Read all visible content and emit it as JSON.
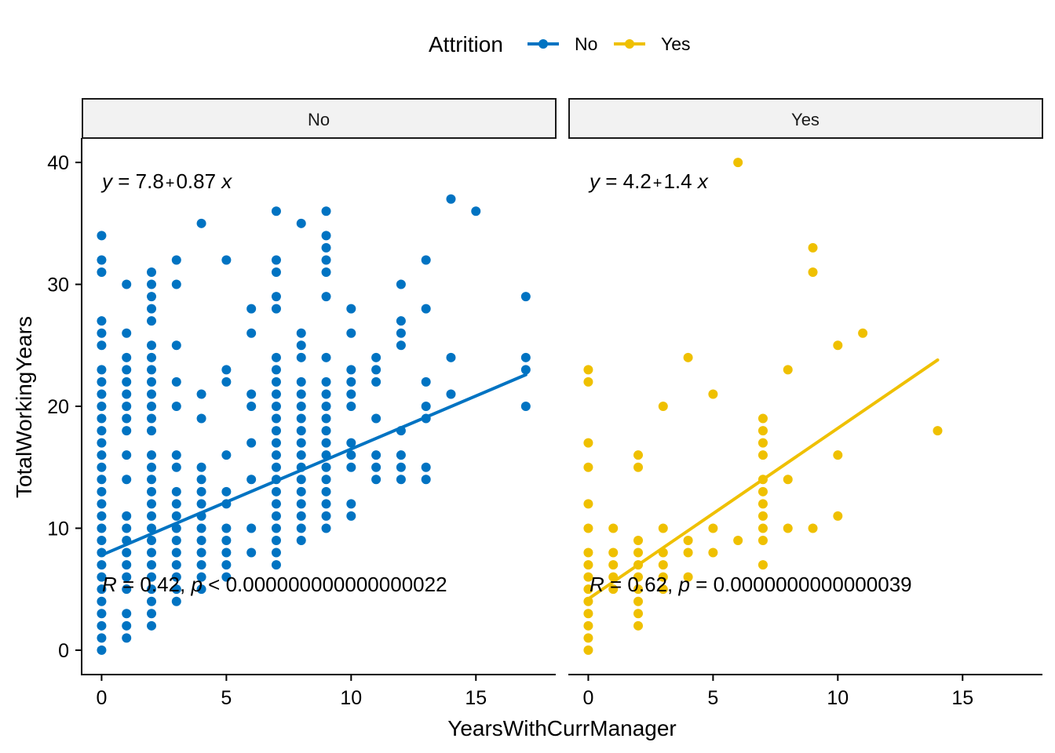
{
  "chart_data": {
    "type": "scatter",
    "xlabel": "YearsWithCurrManager",
    "ylabel": "TotalWorkingYears",
    "xlim": [
      -0.8,
      18.2
    ],
    "ylim": [
      -2,
      42
    ],
    "xticks": [
      0,
      5,
      10,
      15
    ],
    "yticks": [
      0,
      10,
      20,
      30,
      40
    ],
    "legend": {
      "title": "Attrition",
      "position": "top",
      "items": [
        {
          "label": "No",
          "color": "#0073C2"
        },
        {
          "label": "Yes",
          "color": "#EFC000"
        }
      ]
    },
    "panels": [
      {
        "strip": "No",
        "color": "#0073C2",
        "regression": {
          "intercept": 7.8,
          "slope": 0.87,
          "x_range": [
            0,
            17
          ],
          "equation": {
            "y": "y",
            "eq": " = 7.8",
            "plus": "+",
            "rest": "0.87 ",
            "x": "x"
          },
          "stats": {
            "R": "R",
            "rtext": " = 0.42, ",
            "p": "p",
            "ptext": " < 0.000000000000000022"
          }
        },
        "points": [
          [
            0,
            0
          ],
          [
            0,
            1
          ],
          [
            0,
            2
          ],
          [
            0,
            3
          ],
          [
            0,
            4
          ],
          [
            0,
            5
          ],
          [
            0,
            6
          ],
          [
            0,
            7
          ],
          [
            0,
            8
          ],
          [
            0,
            9
          ],
          [
            0,
            10
          ],
          [
            0,
            11
          ],
          [
            0,
            12
          ],
          [
            0,
            13
          ],
          [
            0,
            14
          ],
          [
            0,
            15
          ],
          [
            0,
            16
          ],
          [
            0,
            17
          ],
          [
            0,
            18
          ],
          [
            0,
            19
          ],
          [
            0,
            20
          ],
          [
            0,
            21
          ],
          [
            0,
            22
          ],
          [
            0,
            23
          ],
          [
            0,
            25
          ],
          [
            0,
            26
          ],
          [
            0,
            27
          ],
          [
            0,
            31
          ],
          [
            0,
            32
          ],
          [
            0,
            34
          ],
          [
            1,
            1
          ],
          [
            1,
            2
          ],
          [
            1,
            3
          ],
          [
            1,
            5
          ],
          [
            1,
            6
          ],
          [
            1,
            7
          ],
          [
            1,
            8
          ],
          [
            1,
            9
          ],
          [
            1,
            10
          ],
          [
            1,
            11
          ],
          [
            1,
            14
          ],
          [
            1,
            16
          ],
          [
            1,
            18
          ],
          [
            1,
            19
          ],
          [
            1,
            20
          ],
          [
            1,
            21
          ],
          [
            1,
            22
          ],
          [
            1,
            23
          ],
          [
            1,
            24
          ],
          [
            1,
            26
          ],
          [
            1,
            30
          ],
          [
            2,
            2
          ],
          [
            2,
            3
          ],
          [
            2,
            4
          ],
          [
            2,
            5
          ],
          [
            2,
            6
          ],
          [
            2,
            7
          ],
          [
            2,
            8
          ],
          [
            2,
            9
          ],
          [
            2,
            10
          ],
          [
            2,
            11
          ],
          [
            2,
            12
          ],
          [
            2,
            13
          ],
          [
            2,
            14
          ],
          [
            2,
            15
          ],
          [
            2,
            16
          ],
          [
            2,
            18
          ],
          [
            2,
            19
          ],
          [
            2,
            20
          ],
          [
            2,
            21
          ],
          [
            2,
            22
          ],
          [
            2,
            23
          ],
          [
            2,
            24
          ],
          [
            2,
            25
          ],
          [
            2,
            27
          ],
          [
            2,
            28
          ],
          [
            2,
            29
          ],
          [
            2,
            30
          ],
          [
            2,
            31
          ],
          [
            3,
            4
          ],
          [
            3,
            5
          ],
          [
            3,
            6
          ],
          [
            3,
            7
          ],
          [
            3,
            8
          ],
          [
            3,
            9
          ],
          [
            3,
            10
          ],
          [
            3,
            11
          ],
          [
            3,
            12
          ],
          [
            3,
            13
          ],
          [
            3,
            15
          ],
          [
            3,
            16
          ],
          [
            3,
            20
          ],
          [
            3,
            22
          ],
          [
            3,
            25
          ],
          [
            3,
            30
          ],
          [
            3,
            32
          ],
          [
            4,
            5
          ],
          [
            4,
            6
          ],
          [
            4,
            7
          ],
          [
            4,
            8
          ],
          [
            4,
            9
          ],
          [
            4,
            10
          ],
          [
            4,
            11
          ],
          [
            4,
            12
          ],
          [
            4,
            13
          ],
          [
            4,
            14
          ],
          [
            4,
            15
          ],
          [
            4,
            19
          ],
          [
            4,
            21
          ],
          [
            4,
            35
          ],
          [
            5,
            6
          ],
          [
            5,
            7
          ],
          [
            5,
            8
          ],
          [
            5,
            9
          ],
          [
            5,
            10
          ],
          [
            5,
            12
          ],
          [
            5,
            13
          ],
          [
            5,
            16
          ],
          [
            5,
            22
          ],
          [
            5,
            23
          ],
          [
            5,
            32
          ],
          [
            6,
            8
          ],
          [
            6,
            10
          ],
          [
            6,
            14
          ],
          [
            6,
            17
          ],
          [
            6,
            20
          ],
          [
            6,
            21
          ],
          [
            6,
            26
          ],
          [
            6,
            28
          ],
          [
            7,
            7
          ],
          [
            7,
            8
          ],
          [
            7,
            9
          ],
          [
            7,
            10
          ],
          [
            7,
            11
          ],
          [
            7,
            12
          ],
          [
            7,
            13
          ],
          [
            7,
            14
          ],
          [
            7,
            15
          ],
          [
            7,
            16
          ],
          [
            7,
            17
          ],
          [
            7,
            18
          ],
          [
            7,
            19
          ],
          [
            7,
            20
          ],
          [
            7,
            21
          ],
          [
            7,
            22
          ],
          [
            7,
            23
          ],
          [
            7,
            24
          ],
          [
            7,
            28
          ],
          [
            7,
            29
          ],
          [
            7,
            31
          ],
          [
            7,
            32
          ],
          [
            7,
            36
          ],
          [
            8,
            9
          ],
          [
            8,
            10
          ],
          [
            8,
            11
          ],
          [
            8,
            12
          ],
          [
            8,
            13
          ],
          [
            8,
            14
          ],
          [
            8,
            15
          ],
          [
            8,
            16
          ],
          [
            8,
            17
          ],
          [
            8,
            18
          ],
          [
            8,
            19
          ],
          [
            8,
            20
          ],
          [
            8,
            21
          ],
          [
            8,
            22
          ],
          [
            8,
            24
          ],
          [
            8,
            25
          ],
          [
            8,
            26
          ],
          [
            8,
            35
          ],
          [
            9,
            10
          ],
          [
            9,
            11
          ],
          [
            9,
            12
          ],
          [
            9,
            13
          ],
          [
            9,
            14
          ],
          [
            9,
            15
          ],
          [
            9,
            16
          ],
          [
            9,
            17
          ],
          [
            9,
            18
          ],
          [
            9,
            19
          ],
          [
            9,
            20
          ],
          [
            9,
            21
          ],
          [
            9,
            22
          ],
          [
            9,
            24
          ],
          [
            9,
            29
          ],
          [
            9,
            31
          ],
          [
            9,
            32
          ],
          [
            9,
            33
          ],
          [
            9,
            34
          ],
          [
            9,
            36
          ],
          [
            10,
            11
          ],
          [
            10,
            12
          ],
          [
            10,
            15
          ],
          [
            10,
            16
          ],
          [
            10,
            17
          ],
          [
            10,
            20
          ],
          [
            10,
            21
          ],
          [
            10,
            22
          ],
          [
            10,
            23
          ],
          [
            10,
            26
          ],
          [
            10,
            28
          ],
          [
            11,
            14
          ],
          [
            11,
            15
          ],
          [
            11,
            16
          ],
          [
            11,
            19
          ],
          [
            11,
            22
          ],
          [
            11,
            23
          ],
          [
            11,
            24
          ],
          [
            12,
            14
          ],
          [
            12,
            15
          ],
          [
            12,
            16
          ],
          [
            12,
            18
          ],
          [
            12,
            25
          ],
          [
            12,
            26
          ],
          [
            12,
            27
          ],
          [
            12,
            30
          ],
          [
            13,
            14
          ],
          [
            13,
            15
          ],
          [
            13,
            19
          ],
          [
            13,
            20
          ],
          [
            13,
            22
          ],
          [
            13,
            28
          ],
          [
            13,
            32
          ],
          [
            14,
            21
          ],
          [
            14,
            24
          ],
          [
            14,
            37
          ],
          [
            15,
            36
          ],
          [
            17,
            20
          ],
          [
            17,
            23
          ],
          [
            17,
            24
          ],
          [
            17,
            29
          ]
        ]
      },
      {
        "strip": "Yes",
        "color": "#EFC000",
        "regression": {
          "intercept": 4.2,
          "slope": 1.4,
          "x_range": [
            0,
            14
          ],
          "equation": {
            "y": "y",
            "eq": " = 4.2",
            "plus": "+",
            "rest": "1.4 ",
            "x": "x"
          },
          "stats": {
            "R": "R",
            "rtext": " = 0.62, ",
            "p": "p",
            "ptext": " = 0.0000000000000039"
          }
        },
        "points": [
          [
            0,
            0
          ],
          [
            0,
            1
          ],
          [
            0,
            2
          ],
          [
            0,
            3
          ],
          [
            0,
            4
          ],
          [
            0,
            5
          ],
          [
            0,
            6
          ],
          [
            0,
            7
          ],
          [
            0,
            8
          ],
          [
            0,
            10
          ],
          [
            0,
            12
          ],
          [
            0,
            15
          ],
          [
            0,
            17
          ],
          [
            0,
            22
          ],
          [
            0,
            23
          ],
          [
            1,
            5
          ],
          [
            1,
            6
          ],
          [
            1,
            7
          ],
          [
            1,
            8
          ],
          [
            1,
            10
          ],
          [
            2,
            2
          ],
          [
            2,
            3
          ],
          [
            2,
            4
          ],
          [
            2,
            5
          ],
          [
            2,
            6
          ],
          [
            2,
            7
          ],
          [
            2,
            8
          ],
          [
            2,
            9
          ],
          [
            2,
            15
          ],
          [
            2,
            16
          ],
          [
            3,
            5
          ],
          [
            3,
            6
          ],
          [
            3,
            7
          ],
          [
            3,
            8
          ],
          [
            3,
            10
          ],
          [
            3,
            20
          ],
          [
            4,
            6
          ],
          [
            4,
            8
          ],
          [
            4,
            9
          ],
          [
            4,
            24
          ],
          [
            5,
            8
          ],
          [
            5,
            10
          ],
          [
            5,
            21
          ],
          [
            6,
            9
          ],
          [
            6,
            40
          ],
          [
            7,
            7
          ],
          [
            7,
            9
          ],
          [
            7,
            10
          ],
          [
            7,
            11
          ],
          [
            7,
            12
          ],
          [
            7,
            13
          ],
          [
            7,
            14
          ],
          [
            7,
            16
          ],
          [
            7,
            17
          ],
          [
            7,
            18
          ],
          [
            7,
            19
          ],
          [
            8,
            10
          ],
          [
            8,
            14
          ],
          [
            8,
            23
          ],
          [
            9,
            10
          ],
          [
            9,
            31
          ],
          [
            9,
            33
          ],
          [
            10,
            11
          ],
          [
            10,
            16
          ],
          [
            10,
            25
          ],
          [
            11,
            26
          ],
          [
            14,
            18
          ]
        ]
      }
    ]
  }
}
